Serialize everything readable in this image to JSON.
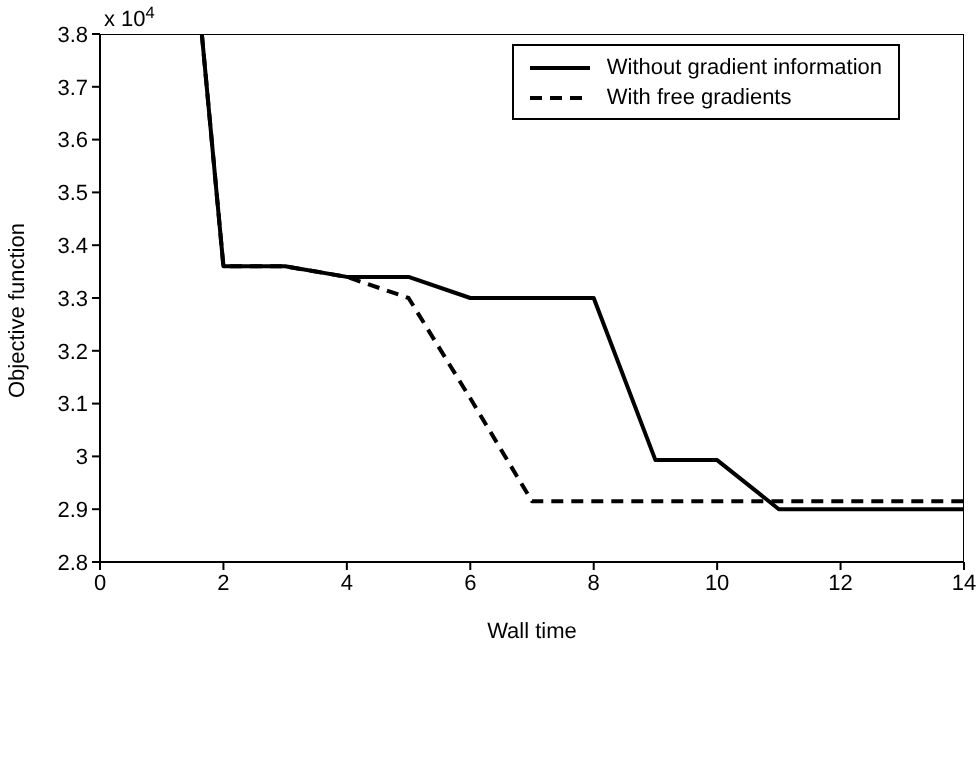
{
  "chart_data": {
    "type": "line",
    "xlabel": "Wall time",
    "ylabel": "Objective function",
    "annotations": [
      "x 10$^{4}$"
    ],
    "xlim": [
      0,
      14
    ],
    "xticks": [
      0,
      2,
      4,
      6,
      8,
      10,
      12,
      14
    ],
    "ylim": [
      2.8,
      3.8
    ],
    "yticks": [
      2.8,
      2.9,
      3,
      3.1,
      3.2,
      3.3,
      3.4,
      3.5,
      3.6,
      3.7,
      3.8
    ],
    "legend": "top right",
    "grid": false,
    "marker": "none",
    "series": [
      {
        "name": "Without gradient information",
        "color": "#000000",
        "line_style": "solid",
        "x": [
          1.65,
          2,
          3,
          4,
          5,
          6,
          8,
          9,
          10,
          11,
          14
        ],
        "values": [
          3.8,
          3.36,
          3.36,
          3.34,
          3.34,
          3.3,
          3.3,
          2.993,
          2.993,
          2.9,
          2.9
        ]
      },
      {
        "name": "With free gradients",
        "color": "#000000",
        "line_style": "dashed",
        "x": [
          1.65,
          2,
          3,
          4,
          5,
          6,
          7,
          14
        ],
        "values": [
          3.8,
          3.36,
          3.36,
          3.34,
          3.3,
          3.11,
          2.915,
          2.915
        ]
      }
    ]
  }
}
